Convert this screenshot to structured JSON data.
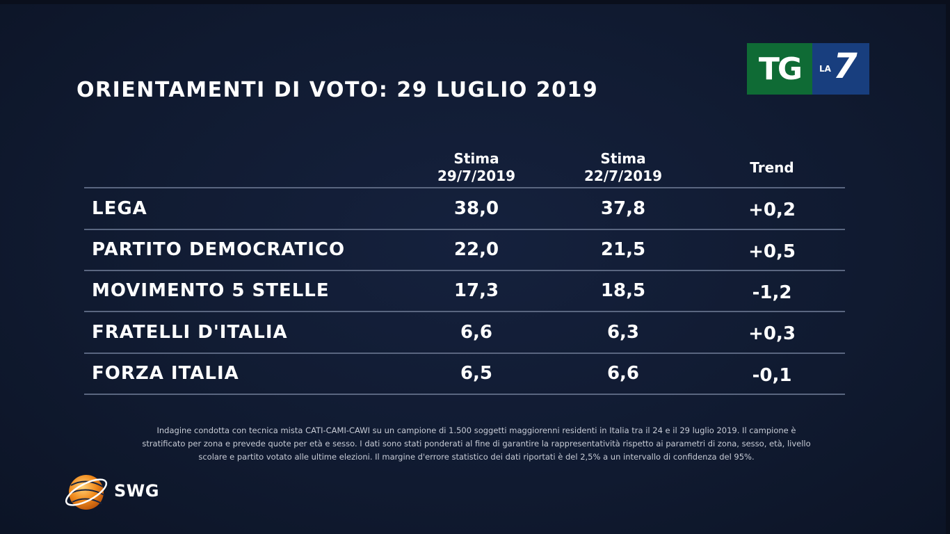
{
  "title": "ORIENTAMENTI DI VOTO: 29 LUGLIO 2019",
  "logo": {
    "tg": "TG",
    "la": "LA",
    "seven": "7",
    "tg_color": "#0f6b35",
    "la7_color": "#183e7e"
  },
  "chart_data": {
    "type": "table",
    "columns": [
      {
        "line1": "Stima",
        "line2": "29/7/2019"
      },
      {
        "line1": "Stima",
        "line2": "22/7/2019"
      },
      {
        "line1": "Trend",
        "line2": ""
      }
    ],
    "rows": [
      {
        "party": "LEGA",
        "stima_29": "38,0",
        "stima_22": "37,8",
        "trend": "+0,2"
      },
      {
        "party": "PARTITO DEMOCRATICO",
        "stima_29": "22,0",
        "stima_22": "21,5",
        "trend": "+0,5"
      },
      {
        "party": "MOVIMENTO 5 STELLE",
        "stima_29": "17,3",
        "stima_22": "18,5",
        "trend": "-1,2"
      },
      {
        "party": "FRATELLI D'ITALIA",
        "stima_29": "6,6",
        "stima_22": "6,3",
        "trend": "+0,3"
      },
      {
        "party": "FORZA ITALIA",
        "stima_29": "6,5",
        "stima_22": "6,6",
        "trend": "-0,1"
      }
    ]
  },
  "footnote": {
    "line1": "Indagine condotta con tecnica mista CATI-CAMI-CAWI su un campione di 1.500 soggetti maggiorenni residenti in Italia tra il 24 e il 29  luglio 2019. Il campione è",
    "line2": "stratificato per zona e prevede quote per età e sesso. I dati sono stati ponderati al fine di garantire la rappresentatività rispetto ai parametri di zona, sesso, età, livello",
    "line3": "scolare e partito votato alle ultime elezioni. Il margine d'errore statistico dei dati riportati è del 2,5% a un intervallo di confidenza del 95%."
  },
  "swg": {
    "text": "SWG",
    "icon": "orange-globe-icon",
    "accent": "#f08a1c"
  },
  "colors": {
    "background": "#111b32",
    "rule": "#5a6680",
    "text": "#ffffff"
  }
}
